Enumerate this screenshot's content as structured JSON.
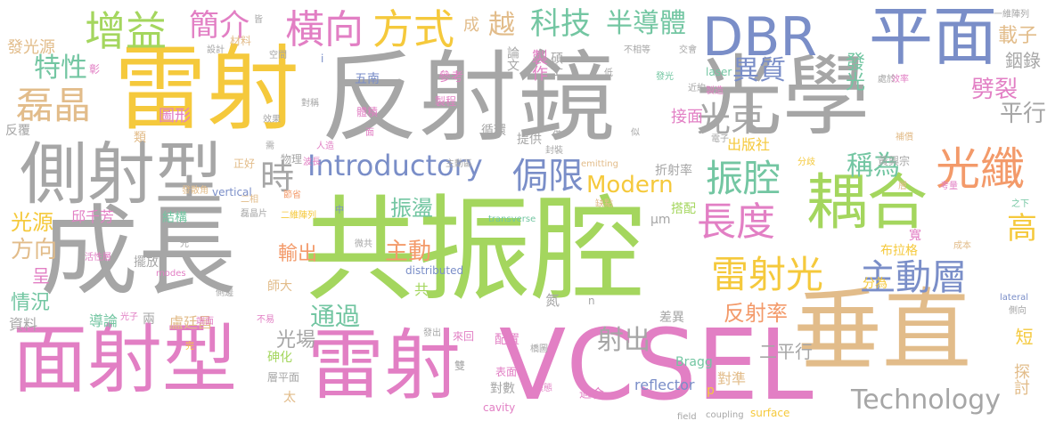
{
  "words": [
    {
      "id": "w1",
      "text": "雷射"
    },
    {
      "id": "w2",
      "text": "反射鏡"
    },
    {
      "id": "w3",
      "text": "光學"
    },
    {
      "id": "w4",
      "text": "平面"
    },
    {
      "id": "w5",
      "text": "DBR"
    },
    {
      "id": "w6",
      "text": "側射型"
    },
    {
      "id": "w7",
      "text": "成長"
    },
    {
      "id": "w8",
      "text": "共振腔"
    },
    {
      "id": "w9",
      "text": "垂直"
    },
    {
      "id": "w10",
      "text": "面射型"
    },
    {
      "id": "w11",
      "text": "雷射"
    },
    {
      "id": "w12",
      "text": "VCSEL"
    },
    {
      "id": "w13",
      "text": "耦合"
    },
    {
      "id": "w14",
      "text": "光纖"
    },
    {
      "id": "w15",
      "text": "增益"
    },
    {
      "id": "w16",
      "text": "簡介"
    },
    {
      "id": "w17",
      "text": "橫向"
    },
    {
      "id": "w18",
      "text": "方式"
    },
    {
      "id": "w19",
      "text": "科技"
    },
    {
      "id": "w20",
      "text": "半導體"
    },
    {
      "id": "w21",
      "text": "磊晶"
    },
    {
      "id": "w22",
      "text": "特性"
    },
    {
      "id": "w23",
      "text": "發光源"
    },
    {
      "id": "w24",
      "text": "光束"
    },
    {
      "id": "w25",
      "text": "平行"
    },
    {
      "id": "w26",
      "text": "異質"
    },
    {
      "id": "w27",
      "text": "劈裂"
    },
    {
      "id": "w28",
      "text": "載子"
    },
    {
      "id": "w29",
      "text": "銦錄"
    },
    {
      "id": "w30",
      "text": "Introductory"
    },
    {
      "id": "w31",
      "text": "Modern"
    },
    {
      "id": "w32",
      "text": "Technology"
    },
    {
      "id": "w33",
      "text": "侷限"
    },
    {
      "id": "w34",
      "text": "振腔"
    },
    {
      "id": "w35",
      "text": "長度"
    },
    {
      "id": "w36",
      "text": "稱為"
    },
    {
      "id": "w37",
      "text": "雷射光"
    },
    {
      "id": "w38",
      "text": "主動層"
    },
    {
      "id": "w39",
      "text": "反射率"
    },
    {
      "id": "w40",
      "text": "主動"
    },
    {
      "id": "w41",
      "text": "輸出"
    },
    {
      "id": "w42",
      "text": "振盪"
    },
    {
      "id": "w43",
      "text": "通過"
    },
    {
      "id": "w44",
      "text": "光場"
    },
    {
      "id": "w45",
      "text": "射出"
    },
    {
      "id": "w46",
      "text": "二平行"
    },
    {
      "id": "w47",
      "text": "高"
    },
    {
      "id": "w48",
      "text": "短"
    },
    {
      "id": "w49",
      "text": "探討"
    },
    {
      "id": "w50",
      "text": "光源"
    },
    {
      "id": "w51",
      "text": "方向"
    },
    {
      "id": "w52",
      "text": "情況"
    },
    {
      "id": "w53",
      "text": "導論"
    },
    {
      "id": "w54",
      "text": "資料"
    },
    {
      "id": "w55",
      "text": "時"
    },
    {
      "id": "w56",
      "text": "出版社"
    },
    {
      "id": "w57",
      "text": "接面"
    },
    {
      "id": "w58",
      "text": "發光"
    },
    {
      "id": "w59",
      "text": "成"
    },
    {
      "id": "w60",
      "text": "越"
    },
    {
      "id": "w61",
      "text": "論文"
    },
    {
      "id": "w62",
      "text": "製作"
    },
    {
      "id": "w63",
      "text": "碩士"
    },
    {
      "id": "w64",
      "text": "五南"
    },
    {
      "id": "w65",
      "text": "參考"
    },
    {
      "id": "w66",
      "text": "循環"
    },
    {
      "id": "w67",
      "text": "圖形"
    },
    {
      "id": "w68",
      "text": "反覆"
    },
    {
      "id": "w69",
      "text": "物理"
    },
    {
      "id": "w70",
      "text": "正好"
    },
    {
      "id": "w71",
      "text": "結構"
    },
    {
      "id": "w72",
      "text": "邱千芳"
    },
    {
      "id": "w73",
      "text": "擺放"
    },
    {
      "id": "w74",
      "text": "盧廷昌"
    },
    {
      "id": "w75",
      "text": "師大"
    },
    {
      "id": "w76",
      "text": "共"
    },
    {
      "id": "w77",
      "text": "分為"
    },
    {
      "id": "w78",
      "text": "布拉格"
    },
    {
      "id": "w79",
      "text": "搭配"
    },
    {
      "id": "w80",
      "text": "折射率"
    },
    {
      "id": "w81",
      "text": "黃興宗"
    },
    {
      "id": "w82",
      "text": "差異"
    },
    {
      "id": "w83",
      "text": "配置"
    },
    {
      "id": "w84",
      "text": "砷化"
    },
    {
      "id": "w85",
      "text": "層平面"
    },
    {
      "id": "w86",
      "text": "對準"
    },
    {
      "id": "w87",
      "text": "對數"
    },
    {
      "id": "w88",
      "text": "適合"
    },
    {
      "id": "w89",
      "text": "reflector"
    },
    {
      "id": "w90",
      "text": "Bragg"
    },
    {
      "id": "w91",
      "text": "surface"
    },
    {
      "id": "w92",
      "text": "distributed"
    },
    {
      "id": "w93",
      "text": "cavity"
    },
    {
      "id": "w94",
      "text": "vertical"
    },
    {
      "id": "w95",
      "text": "emitting"
    },
    {
      "id": "w96",
      "text": "laser"
    },
    {
      "id": "w97",
      "text": "μm"
    },
    {
      "id": "w98",
      "text": "太"
    },
    {
      "id": "w99",
      "text": "雙"
    },
    {
      "id": "w100",
      "text": "呈"
    },
    {
      "id": "w101",
      "text": "提供"
    },
    {
      "id": "w102",
      "text": "體積"
    },
    {
      "id": "w103",
      "text": "類"
    },
    {
      "id": "w104",
      "text": "材料"
    },
    {
      "id": "w105",
      "text": "皆"
    },
    {
      "id": "w106",
      "text": "設計"
    },
    {
      "id": "w107",
      "text": "空間"
    },
    {
      "id": "w108",
      "text": "彰"
    },
    {
      "id": "w109",
      "text": "i"
    },
    {
      "id": "w110",
      "text": "對稱"
    },
    {
      "id": "w111",
      "text": "效果"
    },
    {
      "id": "w112",
      "text": "製程"
    },
    {
      "id": "w113",
      "text": "需"
    },
    {
      "id": "w114",
      "text": "波長"
    },
    {
      "id": "w115",
      "text": "人造"
    },
    {
      "id": "w116",
      "text": "面"
    },
    {
      "id": "w117",
      "text": "主動區"
    },
    {
      "id": "w118",
      "text": "發散角"
    },
    {
      "id": "w119",
      "text": "節省"
    },
    {
      "id": "w120",
      "text": "二相"
    },
    {
      "id": "w121",
      "text": "二維陣列"
    },
    {
      "id": "w122",
      "text": "磊晶片"
    },
    {
      "id": "w123",
      "text": "中"
    },
    {
      "id": "w124",
      "text": "微共"
    },
    {
      "id": "w125",
      "text": "transverse"
    },
    {
      "id": "w126",
      "text": "缺點"
    },
    {
      "id": "w127",
      "text": "光"
    },
    {
      "id": "w128",
      "text": "活性層"
    },
    {
      "id": "w129",
      "text": "modes"
    },
    {
      "id": "w130",
      "text": "側邊"
    },
    {
      "id": "w131",
      "text": "光子"
    },
    {
      "id": "w132",
      "text": "兩"
    },
    {
      "id": "w133",
      "text": "端面"
    },
    {
      "id": "w134",
      "text": "不易"
    },
    {
      "id": "w135",
      "text": "發出"
    },
    {
      "id": "w136",
      "text": "來回"
    },
    {
      "id": "w137",
      "text": "橋圖"
    },
    {
      "id": "w138",
      "text": "表面"
    },
    {
      "id": "w139",
      "text": "模態"
    },
    {
      "id": "w140",
      "text": "氮"
    },
    {
      "id": "w141",
      "text": "n"
    },
    {
      "id": "w142",
      "text": "p"
    },
    {
      "id": "w143",
      "text": "field"
    },
    {
      "id": "w144",
      "text": "coupling"
    },
    {
      "id": "w145",
      "text": "完"
    },
    {
      "id": "w146",
      "text": "僅"
    },
    {
      "id": "w147",
      "text": "封裝"
    },
    {
      "id": "w148",
      "text": "似"
    },
    {
      "id": "w149",
      "text": "電子"
    },
    {
      "id": "w150",
      "text": "補償"
    },
    {
      "id": "w151",
      "text": "層"
    },
    {
      "id": "w152",
      "text": "分歧"
    },
    {
      "id": "w153",
      "text": "考量"
    },
    {
      "id": "w154",
      "text": "之下"
    },
    {
      "id": "w155",
      "text": "寬"
    },
    {
      "id": "w156",
      "text": "成本"
    },
    {
      "id": "w157",
      "text": "lateral"
    },
    {
      "id": "w158",
      "text": "側向"
    },
    {
      "id": "w159",
      "text": "效率"
    },
    {
      "id": "w160",
      "text": "製造"
    },
    {
      "id": "w161",
      "text": "近約"
    },
    {
      "id": "w162",
      "text": "處於"
    },
    {
      "id": "w163",
      "text": "一維陣列"
    },
    {
      "id": "w164",
      "text": "不相等"
    },
    {
      "id": "w165",
      "text": "交會"
    },
    {
      "id": "w166",
      "text": "低"
    },
    {
      "id": "w167",
      "text": "發光"
    }
  ]
}
